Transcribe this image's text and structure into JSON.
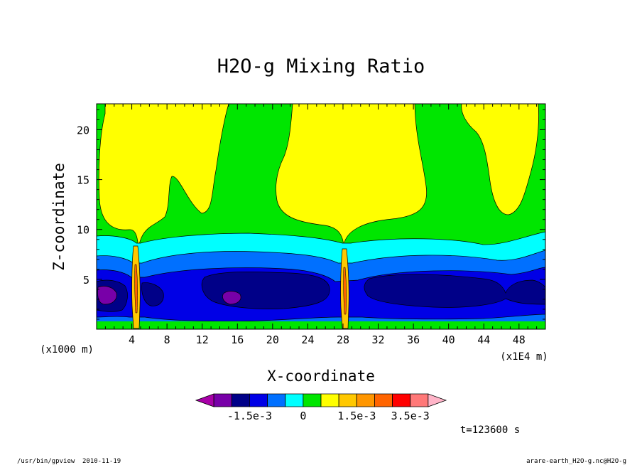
{
  "chart_data": {
    "type": "heatmap",
    "title": "H2O-g Mixing Ratio",
    "xlabel": "X-coordinate",
    "ylabel": "Z-coordinate",
    "x_unit": "(x1E4 m)",
    "y_unit": "(x1000 m)",
    "xlim": [
      0,
      51
    ],
    "ylim": [
      0,
      22.6
    ],
    "x_ticks": [
      4,
      8,
      12,
      16,
      20,
      24,
      28,
      32,
      36,
      40,
      44,
      48
    ],
    "x_tick_labels": [
      "4",
      "8",
      "12",
      "16",
      "20",
      "24",
      "28",
      "32",
      "36",
      "40",
      "44",
      "48"
    ],
    "y_ticks": [
      5,
      10,
      15,
      20
    ],
    "y_tick_labels": [
      "5",
      "10",
      "15",
      "20"
    ],
    "time_label": "t=123600 s",
    "colorbar": {
      "colors": [
        "#a800a8",
        "#7800a8",
        "#000088",
        "#0000e6",
        "#0070ff",
        "#00ffff",
        "#00e600",
        "#ffff00",
        "#ffc800",
        "#ff9600",
        "#ff6400",
        "#ff0000",
        "#ff7878",
        "#ffb4c8"
      ],
      "tick_labels": [
        "-1.5e-3",
        "0",
        "1.5e-3",
        "3.5e-3"
      ],
      "tick_bounds": [
        3,
        6,
        9,
        12
      ]
    },
    "layer_colors": {
      "background": "#00e600",
      "bottom_band": "#00e600",
      "cyan_band": "#00ffff",
      "light_blue_band": "#0070ff",
      "blue_band": "#0000e6",
      "navy_core": "#000088",
      "purple_core": "#7800a8",
      "plume_moist": "#ffc800",
      "plume_hot": "#ff6400",
      "upper_moist": "#ffff00",
      "grid": false
    }
  },
  "footer": {
    "program": "/usr/bin/gpview",
    "date": "2010-11-19",
    "source": "arare-earth_H2O-g.nc@H2O-g"
  }
}
